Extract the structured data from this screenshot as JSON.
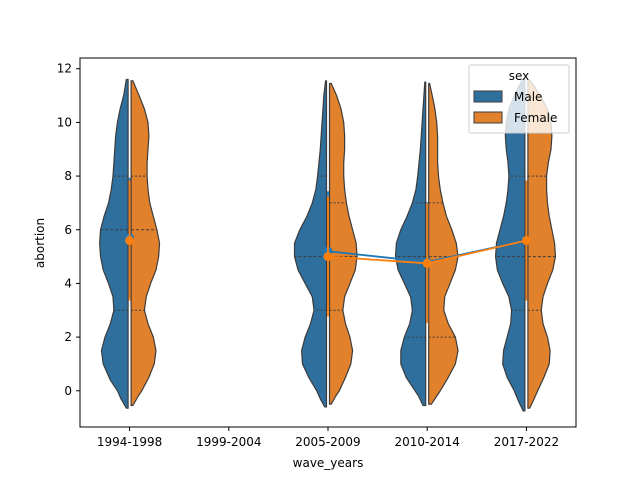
{
  "chart_data": {
    "type": "violin",
    "xlabel": "wave_years",
    "ylabel": "abortion",
    "categories": [
      "1994-1998",
      "1999-2004",
      "2005-2009",
      "2010-2014",
      "2017-2022"
    ],
    "ylim": [
      -1.35,
      12.4
    ],
    "yticks": [
      0,
      2,
      4,
      6,
      8,
      10,
      12
    ],
    "legend": {
      "title": "sex",
      "placement": "top-right"
    },
    "series": [
      {
        "name": "Male",
        "color": "#2f6f9e",
        "mean_color": "#1f77b4",
        "violins": [
          {
            "category": "1994-1998",
            "ymin": -0.65,
            "ymax": 11.6,
            "profile": [
              [
                -0.65,
                0.02
              ],
              [
                -0.3,
                0.08
              ],
              [
                0,
                0.12
              ],
              [
                0.4,
                0.2
              ],
              [
                1,
                0.28
              ],
              [
                1.5,
                0.3
              ],
              [
                2,
                0.26
              ],
              [
                2.5,
                0.2
              ],
              [
                3,
                0.16
              ],
              [
                3.5,
                0.17
              ],
              [
                4,
                0.22
              ],
              [
                4.5,
                0.28
              ],
              [
                5,
                0.31
              ],
              [
                5.5,
                0.32
              ],
              [
                6,
                0.31
              ],
              [
                6.5,
                0.27
              ],
              [
                7,
                0.22
              ],
              [
                7.5,
                0.19
              ],
              [
                8,
                0.17
              ],
              [
                8.5,
                0.16
              ],
              [
                9,
                0.15
              ],
              [
                9.5,
                0.14
              ],
              [
                10,
                0.12
              ],
              [
                10.5,
                0.09
              ],
              [
                11,
                0.05
              ],
              [
                11.6,
                0.02
              ]
            ],
            "quartiles": [
              3,
              6,
              8
            ],
            "mean": 5.7
          },
          {
            "category": "2005-2009",
            "ymin": -0.6,
            "ymax": 11.55,
            "profile": [
              [
                -0.6,
                0.02
              ],
              [
                -0.3,
                0.07
              ],
              [
                0,
                0.11
              ],
              [
                0.5,
                0.2
              ],
              [
                1,
                0.27
              ],
              [
                1.5,
                0.28
              ],
              [
                2,
                0.24
              ],
              [
                2.5,
                0.18
              ],
              [
                3,
                0.14
              ],
              [
                3.5,
                0.16
              ],
              [
                4,
                0.24
              ],
              [
                4.5,
                0.32
              ],
              [
                5,
                0.36
              ],
              [
                5.5,
                0.36
              ],
              [
                6,
                0.3
              ],
              [
                6.5,
                0.22
              ],
              [
                7,
                0.16
              ],
              [
                7.5,
                0.12
              ],
              [
                8,
                0.1
              ],
              [
                9,
                0.07
              ],
              [
                10,
                0.05
              ],
              [
                11,
                0.03
              ],
              [
                11.55,
                0.01
              ]
            ],
            "quartiles": [
              3,
              5,
              8
            ],
            "mean": 5.2
          },
          {
            "category": "2010-2014",
            "ymin": -0.55,
            "ymax": 11.5,
            "profile": [
              [
                -0.55,
                0.03
              ],
              [
                -0.2,
                0.08
              ],
              [
                0,
                0.12
              ],
              [
                0.5,
                0.22
              ],
              [
                1,
                0.28
              ],
              [
                1.5,
                0.28
              ],
              [
                2,
                0.24
              ],
              [
                2.5,
                0.18
              ],
              [
                3,
                0.15
              ],
              [
                3.5,
                0.17
              ],
              [
                4,
                0.24
              ],
              [
                4.5,
                0.31
              ],
              [
                5,
                0.34
              ],
              [
                5.5,
                0.33
              ],
              [
                6,
                0.28
              ],
              [
                6.5,
                0.21
              ],
              [
                7,
                0.15
              ],
              [
                7.5,
                0.11
              ],
              [
                8,
                0.09
              ],
              [
                9,
                0.06
              ],
              [
                10,
                0.04
              ],
              [
                11,
                0.02
              ],
              [
                11.5,
                0.01
              ]
            ],
            "quartiles": [
              2,
              5,
              7
            ],
            "mean": 4.8
          },
          {
            "category": "2017-2022",
            "ymin": -0.75,
            "ymax": 11.6,
            "profile": [
              [
                -0.75,
                0.02
              ],
              [
                -0.4,
                0.07
              ],
              [
                0,
                0.12
              ],
              [
                0.5,
                0.2
              ],
              [
                1,
                0.25
              ],
              [
                1.5,
                0.24
              ],
              [
                2,
                0.2
              ],
              [
                2.5,
                0.16
              ],
              [
                3,
                0.15
              ],
              [
                3.5,
                0.18
              ],
              [
                4,
                0.25
              ],
              [
                4.5,
                0.31
              ],
              [
                5,
                0.33
              ],
              [
                5.5,
                0.32
              ],
              [
                6,
                0.28
              ],
              [
                6.5,
                0.24
              ],
              [
                7,
                0.21
              ],
              [
                7.5,
                0.19
              ],
              [
                8,
                0.18
              ],
              [
                8.5,
                0.19
              ],
              [
                9,
                0.21
              ],
              [
                9.5,
                0.22
              ],
              [
                10,
                0.21
              ],
              [
                10.5,
                0.18
              ],
              [
                11,
                0.12
              ],
              [
                11.6,
                0.03
              ]
            ],
            "quartiles": [
              3,
              5,
              8
            ],
            "mean": 5.6
          }
        ]
      },
      {
        "name": "Female",
        "color": "#e1812c",
        "mean_color": "#ff7f0e",
        "violins": [
          {
            "category": "1994-1998",
            "ymin": -0.55,
            "ymax": 11.55,
            "profile": [
              [
                -0.55,
                0.02
              ],
              [
                -0.2,
                0.08
              ],
              [
                0,
                0.12
              ],
              [
                0.5,
                0.2
              ],
              [
                1,
                0.26
              ],
              [
                1.5,
                0.28
              ],
              [
                2,
                0.25
              ],
              [
                2.5,
                0.19
              ],
              [
                3,
                0.15
              ],
              [
                3.5,
                0.17
              ],
              [
                4,
                0.22
              ],
              [
                4.5,
                0.28
              ],
              [
                5,
                0.31
              ],
              [
                5.5,
                0.32
              ],
              [
                6,
                0.29
              ],
              [
                6.5,
                0.25
              ],
              [
                7,
                0.21
              ],
              [
                7.5,
                0.19
              ],
              [
                8,
                0.18
              ],
              [
                8.5,
                0.18
              ],
              [
                9,
                0.19
              ],
              [
                9.5,
                0.2
              ],
              [
                10,
                0.19
              ],
              [
                10.5,
                0.15
              ],
              [
                11,
                0.09
              ],
              [
                11.55,
                0.02
              ]
            ],
            "quartiles": [
              3,
              6,
              8
            ],
            "mean": 5.6
          },
          {
            "category": "2005-2009",
            "ymin": -0.5,
            "ymax": 11.45,
            "profile": [
              [
                -0.5,
                0.02
              ],
              [
                -0.2,
                0.07
              ],
              [
                0,
                0.11
              ],
              [
                0.5,
                0.18
              ],
              [
                1,
                0.24
              ],
              [
                1.5,
                0.26
              ],
              [
                2,
                0.23
              ],
              [
                2.5,
                0.18
              ],
              [
                3,
                0.15
              ],
              [
                3.5,
                0.17
              ],
              [
                4,
                0.23
              ],
              [
                4.5,
                0.29
              ],
              [
                5,
                0.31
              ],
              [
                5.5,
                0.3
              ],
              [
                6,
                0.26
              ],
              [
                6.5,
                0.22
              ],
              [
                7,
                0.19
              ],
              [
                7.5,
                0.17
              ],
              [
                8,
                0.16
              ],
              [
                8.5,
                0.16
              ],
              [
                9,
                0.17
              ],
              [
                9.5,
                0.17
              ],
              [
                10,
                0.16
              ],
              [
                10.5,
                0.13
              ],
              [
                11,
                0.08
              ],
              [
                11.45,
                0.02
              ]
            ],
            "quartiles": [
              3,
              5,
              7
            ],
            "mean": 5.0
          },
          {
            "category": "2010-2014",
            "ymin": -0.5,
            "ymax": 11.45,
            "profile": [
              [
                -0.5,
                0.03
              ],
              [
                -0.2,
                0.09
              ],
              [
                0,
                0.13
              ],
              [
                0.5,
                0.22
              ],
              [
                1,
                0.3
              ],
              [
                1.5,
                0.33
              ],
              [
                2,
                0.3
              ],
              [
                2.5,
                0.22
              ],
              [
                3,
                0.17
              ],
              [
                3.5,
                0.18
              ],
              [
                4,
                0.24
              ],
              [
                4.5,
                0.3
              ],
              [
                5,
                0.33
              ],
              [
                5.5,
                0.31
              ],
              [
                6,
                0.26
              ],
              [
                6.5,
                0.2
              ],
              [
                7,
                0.16
              ],
              [
                7.5,
                0.13
              ],
              [
                8,
                0.11
              ],
              [
                8.5,
                0.1
              ],
              [
                9,
                0.1
              ],
              [
                9.5,
                0.1
              ],
              [
                10,
                0.09
              ],
              [
                10.5,
                0.07
              ],
              [
                11,
                0.04
              ],
              [
                11.45,
                0.01
              ]
            ],
            "quartiles": [
              2,
              5,
              7
            ],
            "mean": 4.75
          },
          {
            "category": "2017-2022",
            "ymin": -0.65,
            "ymax": 11.55,
            "profile": [
              [
                -0.65,
                0.02
              ],
              [
                -0.3,
                0.07
              ],
              [
                0,
                0.11
              ],
              [
                0.5,
                0.18
              ],
              [
                1,
                0.24
              ],
              [
                1.5,
                0.25
              ],
              [
                2,
                0.22
              ],
              [
                2.5,
                0.17
              ],
              [
                3,
                0.15
              ],
              [
                3.5,
                0.17
              ],
              [
                4,
                0.22
              ],
              [
                4.5,
                0.28
              ],
              [
                5,
                0.31
              ],
              [
                5.5,
                0.3
              ],
              [
                6,
                0.27
              ],
              [
                6.5,
                0.24
              ],
              [
                7,
                0.22
              ],
              [
                7.5,
                0.21
              ],
              [
                8,
                0.21
              ],
              [
                8.5,
                0.23
              ],
              [
                9,
                0.26
              ],
              [
                9.5,
                0.27
              ],
              [
                10,
                0.26
              ],
              [
                10.5,
                0.22
              ],
              [
                11,
                0.14
              ],
              [
                11.55,
                0.03
              ]
            ],
            "quartiles": [
              3,
              5,
              8
            ],
            "mean": 5.6
          }
        ]
      }
    ]
  }
}
